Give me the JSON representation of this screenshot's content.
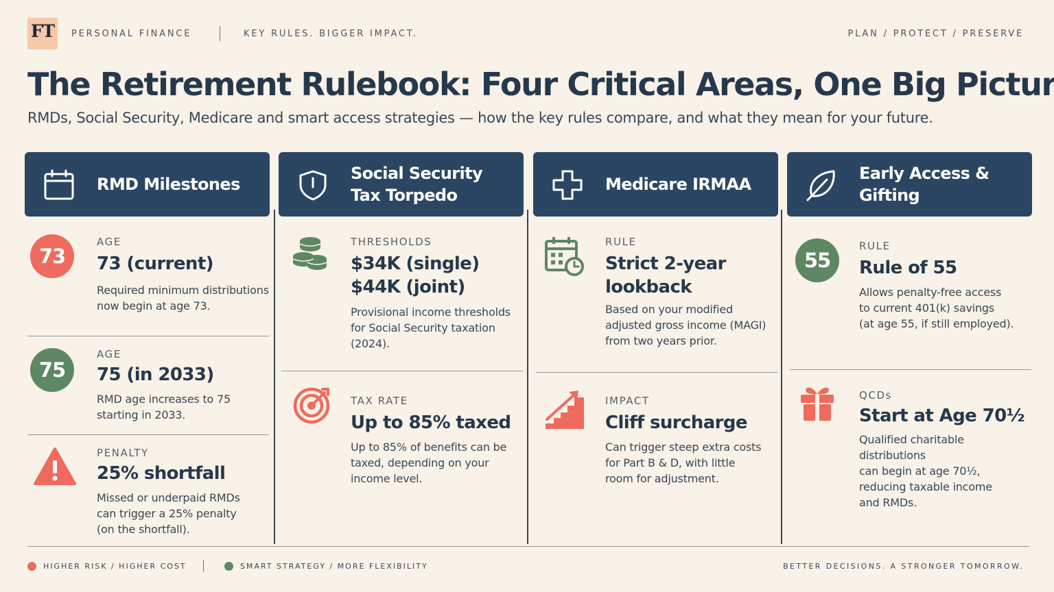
{
  "header": {
    "logo": "FT",
    "section": "PERSONAL FINANCE",
    "tagline_top": "KEY RULES. BIGGER IMPACT.",
    "nav": "PLAN / PROTECT / PRESERVE"
  },
  "title": "The Retirement Rulebook: Four Critical Areas, One Big Picture",
  "subtitle": "RMDs, Social Security, Medicare and smart access strategies — how the key rules compare, and what they mean for your future.",
  "colors": {
    "navy": "#2b4662",
    "risk_red": "#ee6b5e",
    "strategy_green": "#5e8763",
    "background": "#f8f2e8"
  },
  "columns": [
    {
      "title": "RMD Milestones",
      "icon": "calendar-icon",
      "items": [
        {
          "marker": "73",
          "marker_color": "red",
          "label": "AGE",
          "value": "73 (current)",
          "desc": "Required minimum distributions\nnow begin at age 73."
        },
        {
          "marker": "75",
          "marker_color": "green",
          "label": "AGE",
          "value": "75 (in 2033)",
          "desc": "RMD age increases to 75\nstarting in 2033."
        },
        {
          "marker": "warning-icon",
          "label": "PENALTY",
          "value": "25% shortfall",
          "desc": "Missed or underpaid RMDs\ncan trigger a 25% penalty\n(on the shortfall)."
        }
      ]
    },
    {
      "title": "Social Security\nTax Torpedo",
      "icon": "shield-icon",
      "items": [
        {
          "marker": "coin-stack-icon",
          "label": "THRESHOLDS",
          "value": "$34K (single)\n$44K (joint)",
          "desc": "Provisional income thresholds\nfor Social Security taxation\n(2024)."
        },
        {
          "marker": "target-icon",
          "label": "TAX RATE",
          "value": "Up to 85% taxed",
          "desc": "Up to 85% of benefits can be\ntaxed, depending on your\nincome level."
        }
      ]
    },
    {
      "title": "Medicare IRMAA",
      "icon": "medical-cross-icon",
      "items": [
        {
          "marker": "calendar-clock-icon",
          "label": "RULE",
          "value": "Strict 2-year\nlookback",
          "desc": "Based on your modified\nadjusted gross income (MAGI)\nfrom two years prior."
        },
        {
          "marker": "rising-stairs-icon",
          "label": "IMPACT",
          "value": "Cliff surcharge",
          "desc": "Can trigger steep extra costs\nfor Part B & D, with little\nroom for adjustment."
        }
      ]
    },
    {
      "title": "Early Access & Gifting",
      "icon": "leaf-icon",
      "items": [
        {
          "marker": "55",
          "marker_color": "green",
          "label": "RULE",
          "value": "Rule of 55",
          "desc": "Allows penalty-free access\nto current 401(k) savings\n(at age 55, if still employed)."
        },
        {
          "marker": "gift-icon",
          "label": "QCDs",
          "value": "Start at Age 70½",
          "desc": "Qualified charitable distributions\ncan begin at age 70½,\nreducing taxable income\nand RMDs."
        }
      ]
    }
  ],
  "legend": {
    "risk": "HIGHER RISK / HIGHER COST",
    "strategy": "SMART STRATEGY / MORE FLEXIBILITY"
  },
  "footer_tagline": "BETTER DECISIONS. A STRONGER TOMORROW."
}
